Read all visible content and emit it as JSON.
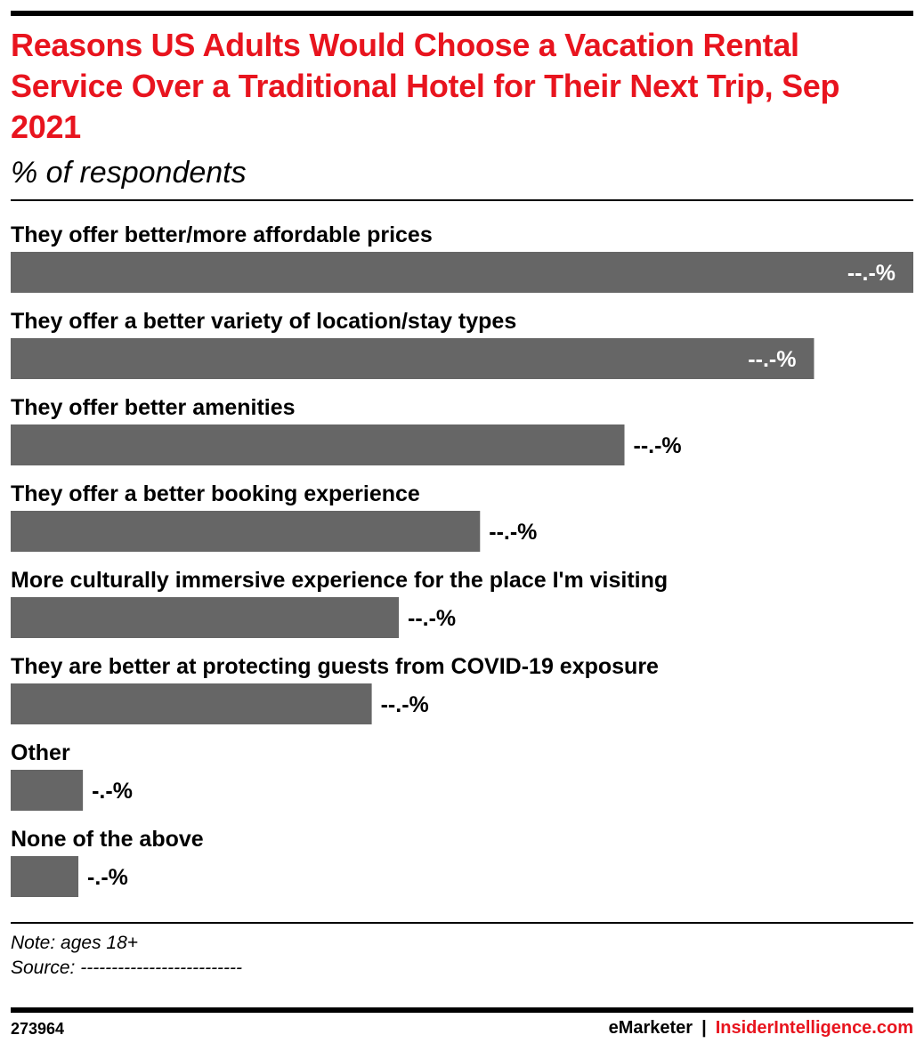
{
  "header": {
    "title": "Reasons US Adults Would Choose a Vacation Rental Service Over a Traditional Hotel for Their Next Trip, Sep 2021",
    "subtitle": "% of respondents"
  },
  "colors": {
    "title": "#e8141e",
    "bar": "#666666",
    "rule": "#000000",
    "inside_label": "#ffffff",
    "outside_label": "#000000"
  },
  "chart_data": {
    "type": "bar",
    "orientation": "horizontal",
    "title": "Reasons US Adults Would Choose a Vacation Rental Service Over a Traditional Hotel for Their Next Trip, Sep 2021",
    "subtitle": "% of respondents",
    "categories": [
      "They offer better/more affordable prices",
      "They offer a better variety of location/stay types",
      "They offer better amenities",
      "They offer a better booking experience",
      "More culturally immersive experience for the place I'm visiting",
      "They are better at protecting guests from COVID-19 exposure",
      "Other",
      "None of the above"
    ],
    "values": [
      100,
      89,
      68,
      52,
      43,
      40,
      8,
      7.5
    ],
    "value_labels": [
      "--.-%",
      "--.-%",
      "--.-%",
      "--.-%",
      "--.-%",
      "--.-%",
      "-.-%",
      "-.-%"
    ],
    "xlim": [
      0,
      100
    ],
    "grid": false,
    "legend": "none",
    "xlabel": "",
    "ylabel": ""
  },
  "footer": {
    "note": "Note: ages 18+",
    "source": "Source: --------------------------",
    "chart_id": "273964",
    "brand_emarketer": "eMarketer",
    "brand_separator": "|",
    "brand_insider": "InsiderIntelligence.com"
  }
}
